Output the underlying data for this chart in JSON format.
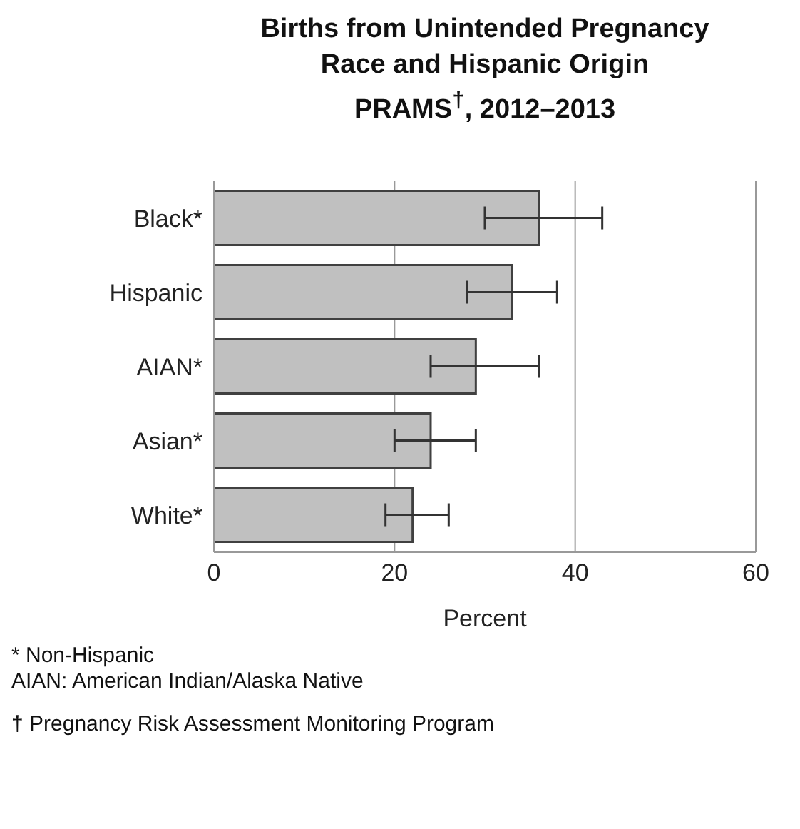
{
  "chart_data": {
    "type": "bar",
    "orientation": "horizontal",
    "title": "Births from Unintended Pregnancy\nRace and Hispanic Origin\nPRAMS$^{†}$, 2012–2013",
    "xlabel": "Percent",
    "categories": [
      "Black*",
      "Hispanic",
      "AIAN*",
      "Asian*",
      "White*"
    ],
    "values": [
      36,
      33,
      29,
      24,
      22
    ],
    "errors": [
      [
        30,
        43
      ],
      [
        28,
        38
      ],
      [
        24,
        36
      ],
      [
        20,
        29
      ],
      [
        19,
        26
      ]
    ],
    "color": "#c0c0c0",
    "xlim": [
      0,
      60
    ],
    "xticks": [
      0,
      20,
      40,
      60
    ],
    "grid": "x",
    "annotations": [
      "* Non-Hispanic",
      "AIAN: American Indian/Alaska Native",
      "† Pregnancy Risk Assessment Monitoring Program"
    ]
  }
}
